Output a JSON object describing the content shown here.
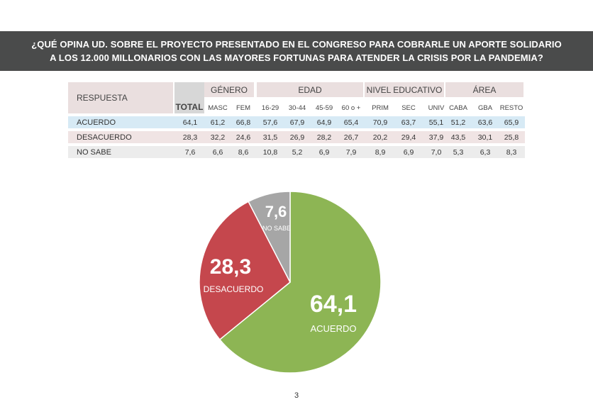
{
  "title": "¿QUÉ OPINA UD. SOBRE EL PROYECTO PRESENTADO EN EL CONGRESO PARA COBRARLE UN APORTE SOLIDARIO A LOS 12.000 MILLONARIOS CON LAS MAYORES FORTUNAS PARA ATENDER LA CRISIS POR LA PANDEMIA?",
  "table": {
    "respuesta_label": "RESPUESTA",
    "total_label": "TOTAL",
    "groups": [
      {
        "label": "GÉNERO",
        "subs": [
          "MASC",
          "FEM"
        ]
      },
      {
        "label": "EDAD",
        "subs": [
          "16-29",
          "30-44",
          "45-59",
          "60 o +"
        ]
      },
      {
        "label": "NIVEL EDUCATIVO",
        "subs": [
          "PRIM",
          "SEC",
          "UNIV"
        ]
      },
      {
        "label": "ÁREA",
        "subs": [
          "CABA",
          "GBA",
          "RESTO"
        ]
      }
    ],
    "rows": [
      {
        "label": "ACUERDO",
        "color": "#d7eaf5",
        "values": [
          "64,1",
          "61,2",
          "66,8",
          "57,6",
          "67,9",
          "64,9",
          "65,4",
          "70,9",
          "63,7",
          "55,1",
          "51,2",
          "63,6",
          "65,9"
        ]
      },
      {
        "label": "DESACUERDO",
        "color": "#f0e4e4",
        "values": [
          "28,3",
          "32,2",
          "24,6",
          "31,5",
          "26,9",
          "28,2",
          "26,7",
          "20,2",
          "29,4",
          "37,9",
          "43,5",
          "30,1",
          "25,8"
        ]
      },
      {
        "label": "NO SABE",
        "color": "#ececec",
        "values": [
          "7,6",
          "6,6",
          "8,6",
          "10,8",
          "5,2",
          "6,9",
          "7,9",
          "8,9",
          "6,9",
          "7,0",
          "5,3",
          "6,3",
          "8,3"
        ]
      }
    ]
  },
  "chart_data": {
    "type": "pie",
    "slices": [
      {
        "label": "ACUERDO",
        "value": 64.1,
        "display": "64,1",
        "color": "#8db554"
      },
      {
        "label": "DESACUERDO",
        "value": 28.3,
        "display": "28,3",
        "color": "#c5474d"
      },
      {
        "label": "NO SABE",
        "value": 7.6,
        "display": "7,6",
        "color": "#a6a6a6"
      }
    ]
  },
  "page_number": "3"
}
